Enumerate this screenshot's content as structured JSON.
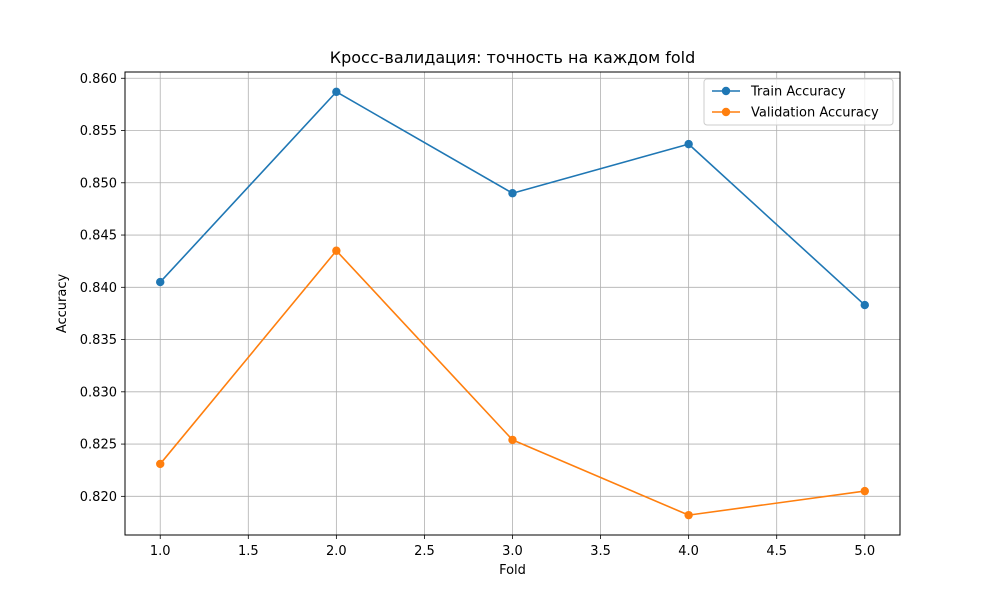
{
  "chart_data": {
    "type": "line",
    "title": "Кросс-валидация: точность на каждом fold",
    "xlabel": "Fold",
    "ylabel": "Accuracy",
    "xlim": [
      0.8,
      5.2
    ],
    "ylim": [
      0.8163,
      0.8606
    ],
    "xticks": [
      1.0,
      1.5,
      2.0,
      2.5,
      3.0,
      3.5,
      4.0,
      4.5,
      5.0
    ],
    "xtick_labels": [
      "1.0",
      "1.5",
      "2.0",
      "2.5",
      "3.0",
      "3.5",
      "4.0",
      "4.5",
      "5.0"
    ],
    "yticks": [
      0.82,
      0.825,
      0.83,
      0.835,
      0.84,
      0.845,
      0.85,
      0.855,
      0.86
    ],
    "ytick_labels": [
      "0.820",
      "0.825",
      "0.830",
      "0.835",
      "0.840",
      "0.845",
      "0.850",
      "0.855",
      "0.860"
    ],
    "grid": true,
    "legend_position": "top-right",
    "x": [
      1,
      2,
      3,
      4,
      5
    ],
    "series": [
      {
        "name": "Train Accuracy",
        "color": "#1f77b4",
        "values": [
          0.8405,
          0.8587,
          0.849,
          0.8537,
          0.8383
        ]
      },
      {
        "name": "Validation Accuracy",
        "color": "#ff7f0e",
        "values": [
          0.8231,
          0.8435,
          0.8254,
          0.8182,
          0.8205
        ]
      }
    ]
  }
}
